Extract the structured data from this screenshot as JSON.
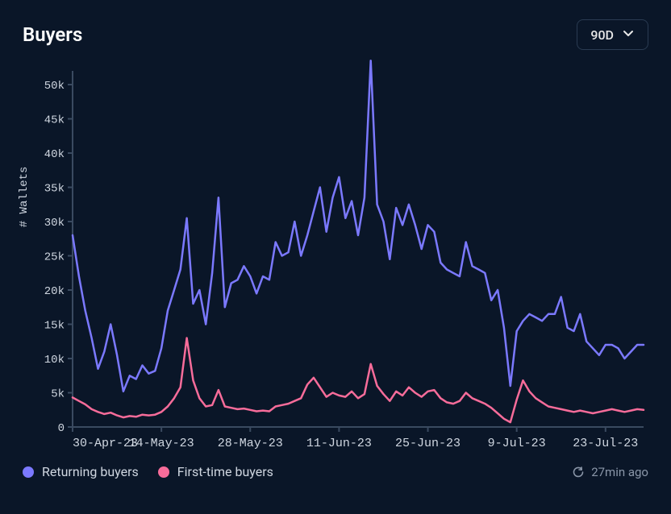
{
  "header": {
    "title": "Buyers",
    "range_label": "90D"
  },
  "chart": {
    "type": "line",
    "ylabel": "# Wallets",
    "ylim": [
      0,
      52000
    ],
    "ytick_step": 5000,
    "yticks": [
      0,
      5000,
      10000,
      15000,
      20000,
      25000,
      30000,
      35000,
      40000,
      45000,
      50000
    ],
    "ytick_labels": [
      "0",
      "5k",
      "10k",
      "15k",
      "20k",
      "25k",
      "30k",
      "35k",
      "40k",
      "45k",
      "50k"
    ],
    "xtick_labels": [
      "30-Apr-23",
      "14-May-23",
      "28-May-23",
      "11-Jun-23",
      "25-Jun-23",
      "9-Jul-23",
      "23-Jul-23"
    ],
    "xtick_indices": [
      0,
      14,
      28,
      42,
      56,
      70,
      84
    ],
    "n_points": 91,
    "axis_color": "#3a4a60",
    "background_color": "#0a1628",
    "tick_font_color": "#cfd6e0",
    "label_fontsize": 14,
    "series": [
      {
        "name": "returning",
        "label": "Returning buyers",
        "color": "#7b79ff",
        "line_width": 2.5,
        "values": [
          28000,
          22000,
          17000,
          13000,
          8500,
          11000,
          15000,
          10500,
          5200,
          7500,
          7000,
          9000,
          7800,
          8200,
          11500,
          17000,
          20000,
          23000,
          30500,
          18000,
          20000,
          15000,
          22500,
          33500,
          17500,
          21000,
          21500,
          23500,
          22000,
          19500,
          22000,
          21500,
          27000,
          25000,
          25500,
          30000,
          25000,
          28000,
          31500,
          35000,
          28500,
          33500,
          36500,
          30500,
          33000,
          28000,
          33500,
          53500,
          32500,
          30000,
          24500,
          32000,
          29500,
          32500,
          29500,
          26000,
          29500,
          28500,
          24000,
          23000,
          22500,
          22000,
          27000,
          23500,
          23000,
          22500,
          18500,
          20000,
          14500,
          6000,
          14000,
          15500,
          16500,
          16000,
          15500,
          16500,
          16500,
          19000,
          14500,
          14000,
          16500,
          12500,
          11500,
          10500,
          12000,
          12000,
          11500,
          10000,
          11000,
          12000,
          12000
        ]
      },
      {
        "name": "first_time",
        "label": "First-time buyers",
        "color": "#f76c9a",
        "line_width": 2.5,
        "values": [
          4300,
          3800,
          3300,
          2600,
          2200,
          1900,
          2100,
          1700,
          1400,
          1600,
          1500,
          1800,
          1700,
          1800,
          2200,
          3000,
          4200,
          5800,
          13000,
          6800,
          4200,
          3000,
          3200,
          5400,
          3000,
          2800,
          2600,
          2700,
          2500,
          2300,
          2400,
          2300,
          3000,
          3200,
          3400,
          3800,
          4200,
          6200,
          7200,
          5800,
          4400,
          5000,
          4600,
          4400,
          5200,
          4200,
          4800,
          9200,
          6000,
          4800,
          3800,
          5200,
          4600,
          5800,
          5000,
          4400,
          5200,
          5400,
          4200,
          3600,
          3400,
          3800,
          5000,
          4200,
          3800,
          3400,
          2800,
          2000,
          1200,
          700,
          4000,
          6800,
          5200,
          4200,
          3600,
          3000,
          2800,
          2600,
          2400,
          2200,
          2400,
          2200,
          2000,
          2200,
          2400,
          2600,
          2400,
          2200,
          2400,
          2600,
          2500
        ]
      }
    ]
  },
  "legend": {
    "items": [
      {
        "label": "Returning buyers",
        "color": "#7b79ff"
      },
      {
        "label": "First-time buyers",
        "color": "#f76c9a"
      }
    ]
  },
  "footer": {
    "updated_label": "27min ago"
  },
  "colors": {
    "background": "#0a1628",
    "text_primary": "#ffffff",
    "text_secondary": "#cfd6e0",
    "text_muted": "#8a96a8",
    "border": "#2a3b52"
  }
}
